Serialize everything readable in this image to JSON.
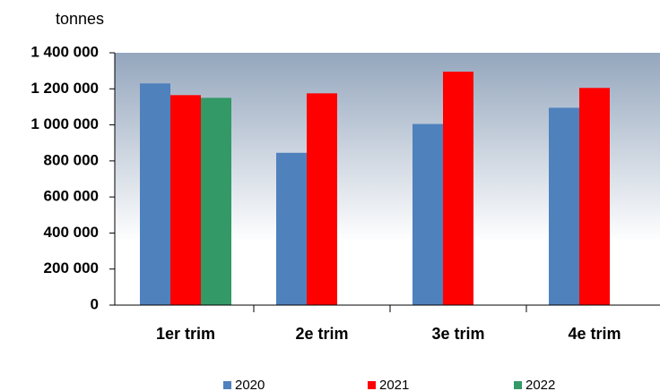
{
  "chart_data": {
    "type": "bar",
    "ylabel": "tonnes",
    "categories": [
      "1er trim",
      "2e trim",
      "3e trim",
      "4e trim"
    ],
    "series": [
      {
        "name": "2020",
        "color": "#4f81bd",
        "values": [
          1230000,
          845000,
          1005000,
          1095000
        ]
      },
      {
        "name": "2021",
        "color": "#ff0000",
        "values": [
          1165000,
          1175000,
          1295000,
          1205000
        ]
      },
      {
        "name": "2022",
        "color": "#339966",
        "values": [
          1150000,
          null,
          null,
          null
        ]
      }
    ],
    "ylim": [
      0,
      1400000
    ],
    "yticks": [
      0,
      {
        "value": 200000,
        "label": "200 000"
      },
      {
        "value": 400000,
        "label": "400 000"
      },
      {
        "value": 600000,
        "label": "600 000"
      },
      {
        "value": 800000,
        "label": "800 000"
      },
      {
        "value": 1000000,
        "label": "1 000 000"
      },
      {
        "value": 1200000,
        "label": "1 200 000"
      },
      {
        "value": 1400000,
        "label": "1 400 000"
      }
    ],
    "legend": "bottom"
  }
}
